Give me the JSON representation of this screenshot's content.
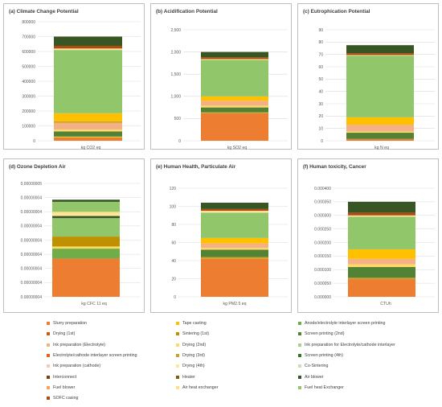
{
  "colors": {
    "Slurry preparation": "#ed7d31",
    "Tape casting": "#ffc000",
    "Anode/electrolyte interlayer screen printing": "#70ad47",
    "Drying (1st)": "#c55a11",
    "Sintering (1st)": "#bf9000",
    "Screen printing (2nd)": "#548235",
    "Ink preparation (Electrolyte)": "#f4b183",
    "Drying (2nd)": "#ffd966",
    "Ink preparation for Electrolyte/cathode interlayer": "#a9d18e",
    "Electrolyte/cathode interlayer screen printing": "#e2621b",
    "Drying (3rd)": "#c9a227",
    "Screen printing (4th)": "#38761d",
    "Ink preparation (cathode)": "#f8cbad",
    "Drying (4th)": "#ffe699",
    "Co-Sintering": "#c5e0b4",
    "Interconnect": "#833c0b",
    "Heater": "#7f6000",
    "Air blower": "#375623",
    "Fuel blower": "#f4a460",
    "Air heat exchanger": "#ffe082",
    "Fuel heat Exchanger": "#92c66b",
    "SOFC casing": "#b04a0f"
  },
  "legend": [
    "Slurry preparation",
    "Tape casting",
    "Anode/electrolyte interlayer screen printing",
    "Drying (1st)",
    "Sintering (1st)",
    "Screen printing (2nd)",
    "Ink preparation (Electrolyte)",
    "Drying (2nd)",
    "Ink preparation for Electrolyte/cathode interlayer",
    "Electrolyte/cathode interlayer screen printing",
    "Drying (3rd)",
    "Screen printing (4th)",
    "Ink preparation (cathode)",
    "Drying (4th)",
    "Co-Sintering",
    "Interconnect",
    "Heater",
    "Air blower",
    "Fuel blower",
    "Air heat exchanger",
    "Fuel heat Exchanger",
    "SOFC casing"
  ],
  "chart_data": [
    {
      "type": "bar",
      "title": "(a) Climate Change Potential",
      "xlabel": "kg CO2 eq",
      "ylim": [
        0,
        800000
      ],
      "ticks": [
        "0",
        "100000",
        "200000",
        "300000",
        "400000",
        "500000",
        "600000",
        "700000",
        "800000"
      ],
      "stack": [
        {
          "name": "Slurry preparation",
          "value": 22000
        },
        {
          "name": "Tape casting",
          "value": 4000
        },
        {
          "name": "Anode/electrolyte interlayer screen printing",
          "value": 3000
        },
        {
          "name": "Screen printing (2nd)",
          "value": 34000
        },
        {
          "name": "Drying (2nd)",
          "value": 12000
        },
        {
          "name": "Ink preparation (Electrolyte)",
          "value": 45000
        },
        {
          "name": "Drying (3rd)",
          "value": 10000
        },
        {
          "name": "Tape casting",
          "value": 55000
        },
        {
          "name": "Fuel heat Exchanger",
          "value": 425000
        },
        {
          "name": "Drying (4th)",
          "value": 10000
        },
        {
          "name": "SOFC casing",
          "value": 18000
        },
        {
          "name": "Air blower",
          "value": 62000
        }
      ]
    },
    {
      "type": "bar",
      "title": "(b) Acidification Potential",
      "xlabel": "kg SO2 eq",
      "ylim": [
        0,
        2500
      ],
      "ticks": [
        "0",
        "500",
        "1,000",
        "1,500",
        "2,000",
        "2,500"
      ],
      "stack": [
        {
          "name": "Slurry preparation",
          "value": 620
        },
        {
          "name": "Drying (3rd)",
          "value": 20
        },
        {
          "name": "Screen printing (2nd)",
          "value": 110
        },
        {
          "name": "Drying (2nd)",
          "value": 40
        },
        {
          "name": "Ink preparation (Electrolyte)",
          "value": 110
        },
        {
          "name": "Tape casting",
          "value": 100
        },
        {
          "name": "Fuel heat Exchanger",
          "value": 820
        },
        {
          "name": "Drying (4th)",
          "value": 20
        },
        {
          "name": "SOFC casing",
          "value": 40
        },
        {
          "name": "Air blower",
          "value": 120
        }
      ]
    },
    {
      "type": "bar",
      "title": "(c) Eutrophication Potential",
      "xlabel": "kg N eq",
      "ylim": [
        0,
        90
      ],
      "ticks": [
        "0",
        "10",
        "20",
        "30",
        "40",
        "50",
        "60",
        "70",
        "80",
        "90"
      ],
      "stack": [
        {
          "name": "Slurry preparation",
          "value": 1.5
        },
        {
          "name": "Screen printing (2nd)",
          "value": 5
        },
        {
          "name": "Drying (2nd)",
          "value": 1
        },
        {
          "name": "Ink preparation (Electrolyte)",
          "value": 5.5
        },
        {
          "name": "Tape casting",
          "value": 6
        },
        {
          "name": "Fuel heat Exchanger",
          "value": 50
        },
        {
          "name": "Drying (4th)",
          "value": 0.5
        },
        {
          "name": "SOFC casing",
          "value": 1.5
        },
        {
          "name": "Air blower",
          "value": 6.5
        }
      ]
    },
    {
      "type": "bar",
      "title": "(d) Ozone Depletion Air",
      "xlabel": "kg CFC 11 eq",
      "ylim": [
        0,
        8
      ],
      "ticks": [
        "0.00000004",
        "0.00000004",
        "0.00000004",
        "0.00000004",
        "0.00000004",
        "0.00000004",
        "0.00000004",
        "0.00000004",
        "0.00000005"
      ],
      "stack": [
        {
          "name": "Slurry preparation",
          "value": 2.7
        },
        {
          "name": "Anode/electrolyte interlayer screen printing",
          "value": 0.7
        },
        {
          "name": "Drying (2nd)",
          "value": 0.15
        },
        {
          "name": "Sintering (1st)",
          "value": 0.7
        },
        {
          "name": "Fuel heat Exchanger",
          "value": 1.3
        },
        {
          "name": "Air blower",
          "value": 0.15
        },
        {
          "name": "Drying (4th)",
          "value": 0.2
        },
        {
          "name": "Air heat exchanger",
          "value": 0.1
        },
        {
          "name": "Fuel heat Exchanger",
          "value": 0.7
        },
        {
          "name": "Air blower",
          "value": 0.15
        }
      ]
    },
    {
      "type": "bar",
      "title": "(e) Human Health, Particulate Air",
      "xlabel": "kg PM2.5 eq",
      "ylim": [
        0,
        120
      ],
      "ticks": [
        "0",
        "20",
        "40",
        "60",
        "80",
        "100",
        "120"
      ],
      "stack": [
        {
          "name": "Slurry preparation",
          "value": 42
        },
        {
          "name": "Drying (3rd)",
          "value": 2
        },
        {
          "name": "Screen printing (2nd)",
          "value": 8
        },
        {
          "name": "Drying (2nd)",
          "value": 2
        },
        {
          "name": "Ink preparation (Electrolyte)",
          "value": 5
        },
        {
          "name": "Tape casting",
          "value": 6
        },
        {
          "name": "Fuel heat Exchanger",
          "value": 28
        },
        {
          "name": "Drying (4th)",
          "value": 2
        },
        {
          "name": "SOFC casing",
          "value": 2
        },
        {
          "name": "Air blower",
          "value": 7
        }
      ]
    },
    {
      "type": "bar",
      "title": "(f) Human toxicity, Cancer",
      "xlabel": "CTUh",
      "ylim": [
        0,
        0.0004
      ],
      "ticks": [
        "0.000000",
        "0.000050",
        "0.000100",
        "0.000150",
        "0.000200",
        "0.000250",
        "0.000300",
        "0.000350",
        "0.000400"
      ],
      "stack": [
        {
          "name": "Slurry preparation",
          "value": 6.5e-05
        },
        {
          "name": "Drying (3rd)",
          "value": 5e-06
        },
        {
          "name": "Screen printing (2nd)",
          "value": 4e-05
        },
        {
          "name": "Drying (2nd)",
          "value": 1e-05
        },
        {
          "name": "Ink preparation (Electrolyte)",
          "value": 2e-05
        },
        {
          "name": "Tape casting",
          "value": 3.5e-05
        },
        {
          "name": "Fuel heat Exchanger",
          "value": 0.00012
        },
        {
          "name": "Drying (4th)",
          "value": 5e-06
        },
        {
          "name": "SOFC casing",
          "value": 1e-05
        },
        {
          "name": "Air blower",
          "value": 4e-05
        }
      ]
    }
  ]
}
